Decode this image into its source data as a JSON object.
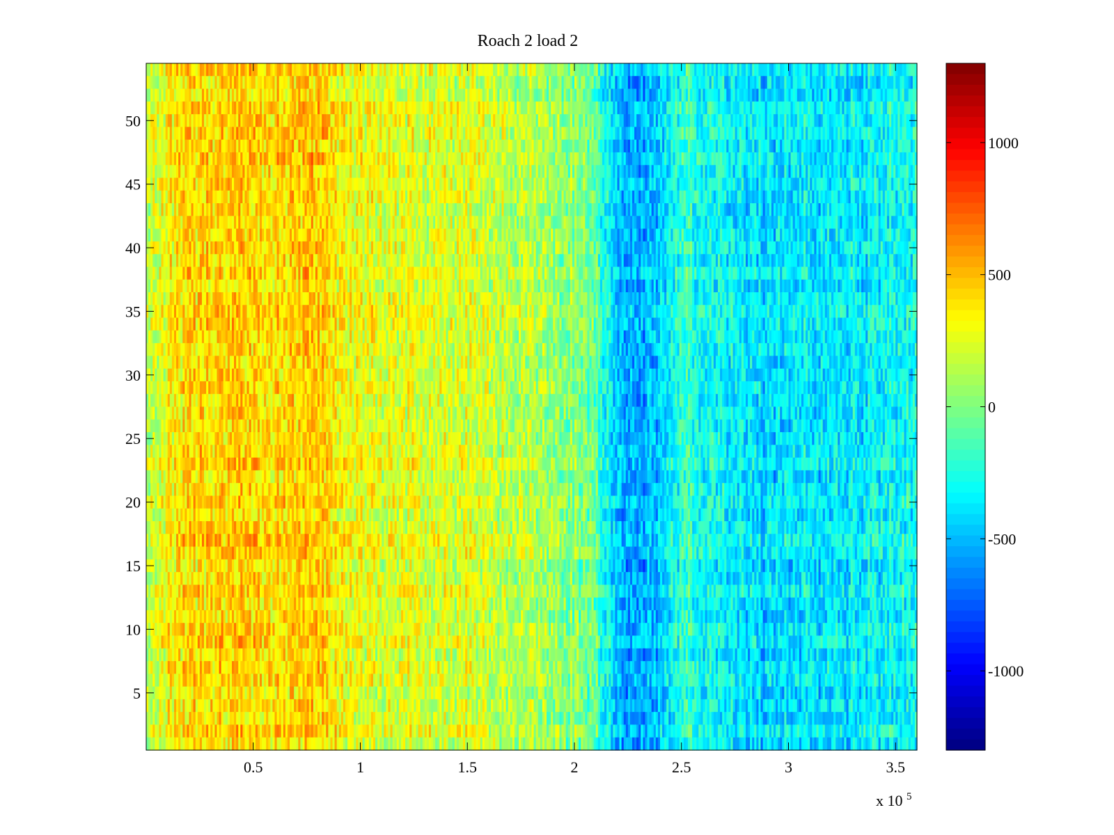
{
  "chart_data": {
    "type": "heatmap",
    "title": "Roach 2 load 2",
    "xlabel": "",
    "ylabel": "",
    "x_exponent_label": "x 10",
    "x_exponent_power": "5",
    "xlim": [
      0,
      3.6
    ],
    "ylim": [
      0.5,
      54.5
    ],
    "x_ticks": [
      0.5,
      1,
      1.5,
      2,
      2.5,
      3,
      3.5
    ],
    "x_tick_labels": [
      "0.5",
      "1",
      "1.5",
      "2",
      "2.5",
      "3",
      "3.5"
    ],
    "y_ticks": [
      5,
      10,
      15,
      20,
      25,
      30,
      35,
      40,
      45,
      50
    ],
    "y_tick_labels": [
      "5",
      "10",
      "15",
      "20",
      "25",
      "30",
      "35",
      "40",
      "45",
      "50"
    ],
    "rows": 54,
    "colormap": "jet",
    "clim": [
      -1300,
      1300
    ],
    "colorbar_ticks": [
      1000,
      500,
      0,
      -500,
      -1000
    ],
    "colorbar_tick_labels": [
      "1000",
      "500",
      "0",
      "-500",
      "-1000"
    ],
    "column_profile": {
      "x": [
        0,
        0.15,
        0.3,
        0.5,
        0.7,
        0.8,
        0.9,
        1.0,
        1.2,
        1.5,
        1.8,
        2.0,
        2.1,
        2.2,
        2.3,
        2.4,
        2.5,
        2.7,
        2.9,
        3.0,
        3.2,
        3.4,
        3.6
      ],
      "mean": [
        150,
        380,
        430,
        420,
        460,
        480,
        350,
        280,
        250,
        220,
        130,
        30,
        -80,
        -480,
        -580,
        -470,
        -220,
        -300,
        -420,
        -350,
        -380,
        -330,
        -300
      ]
    },
    "grid": false
  }
}
